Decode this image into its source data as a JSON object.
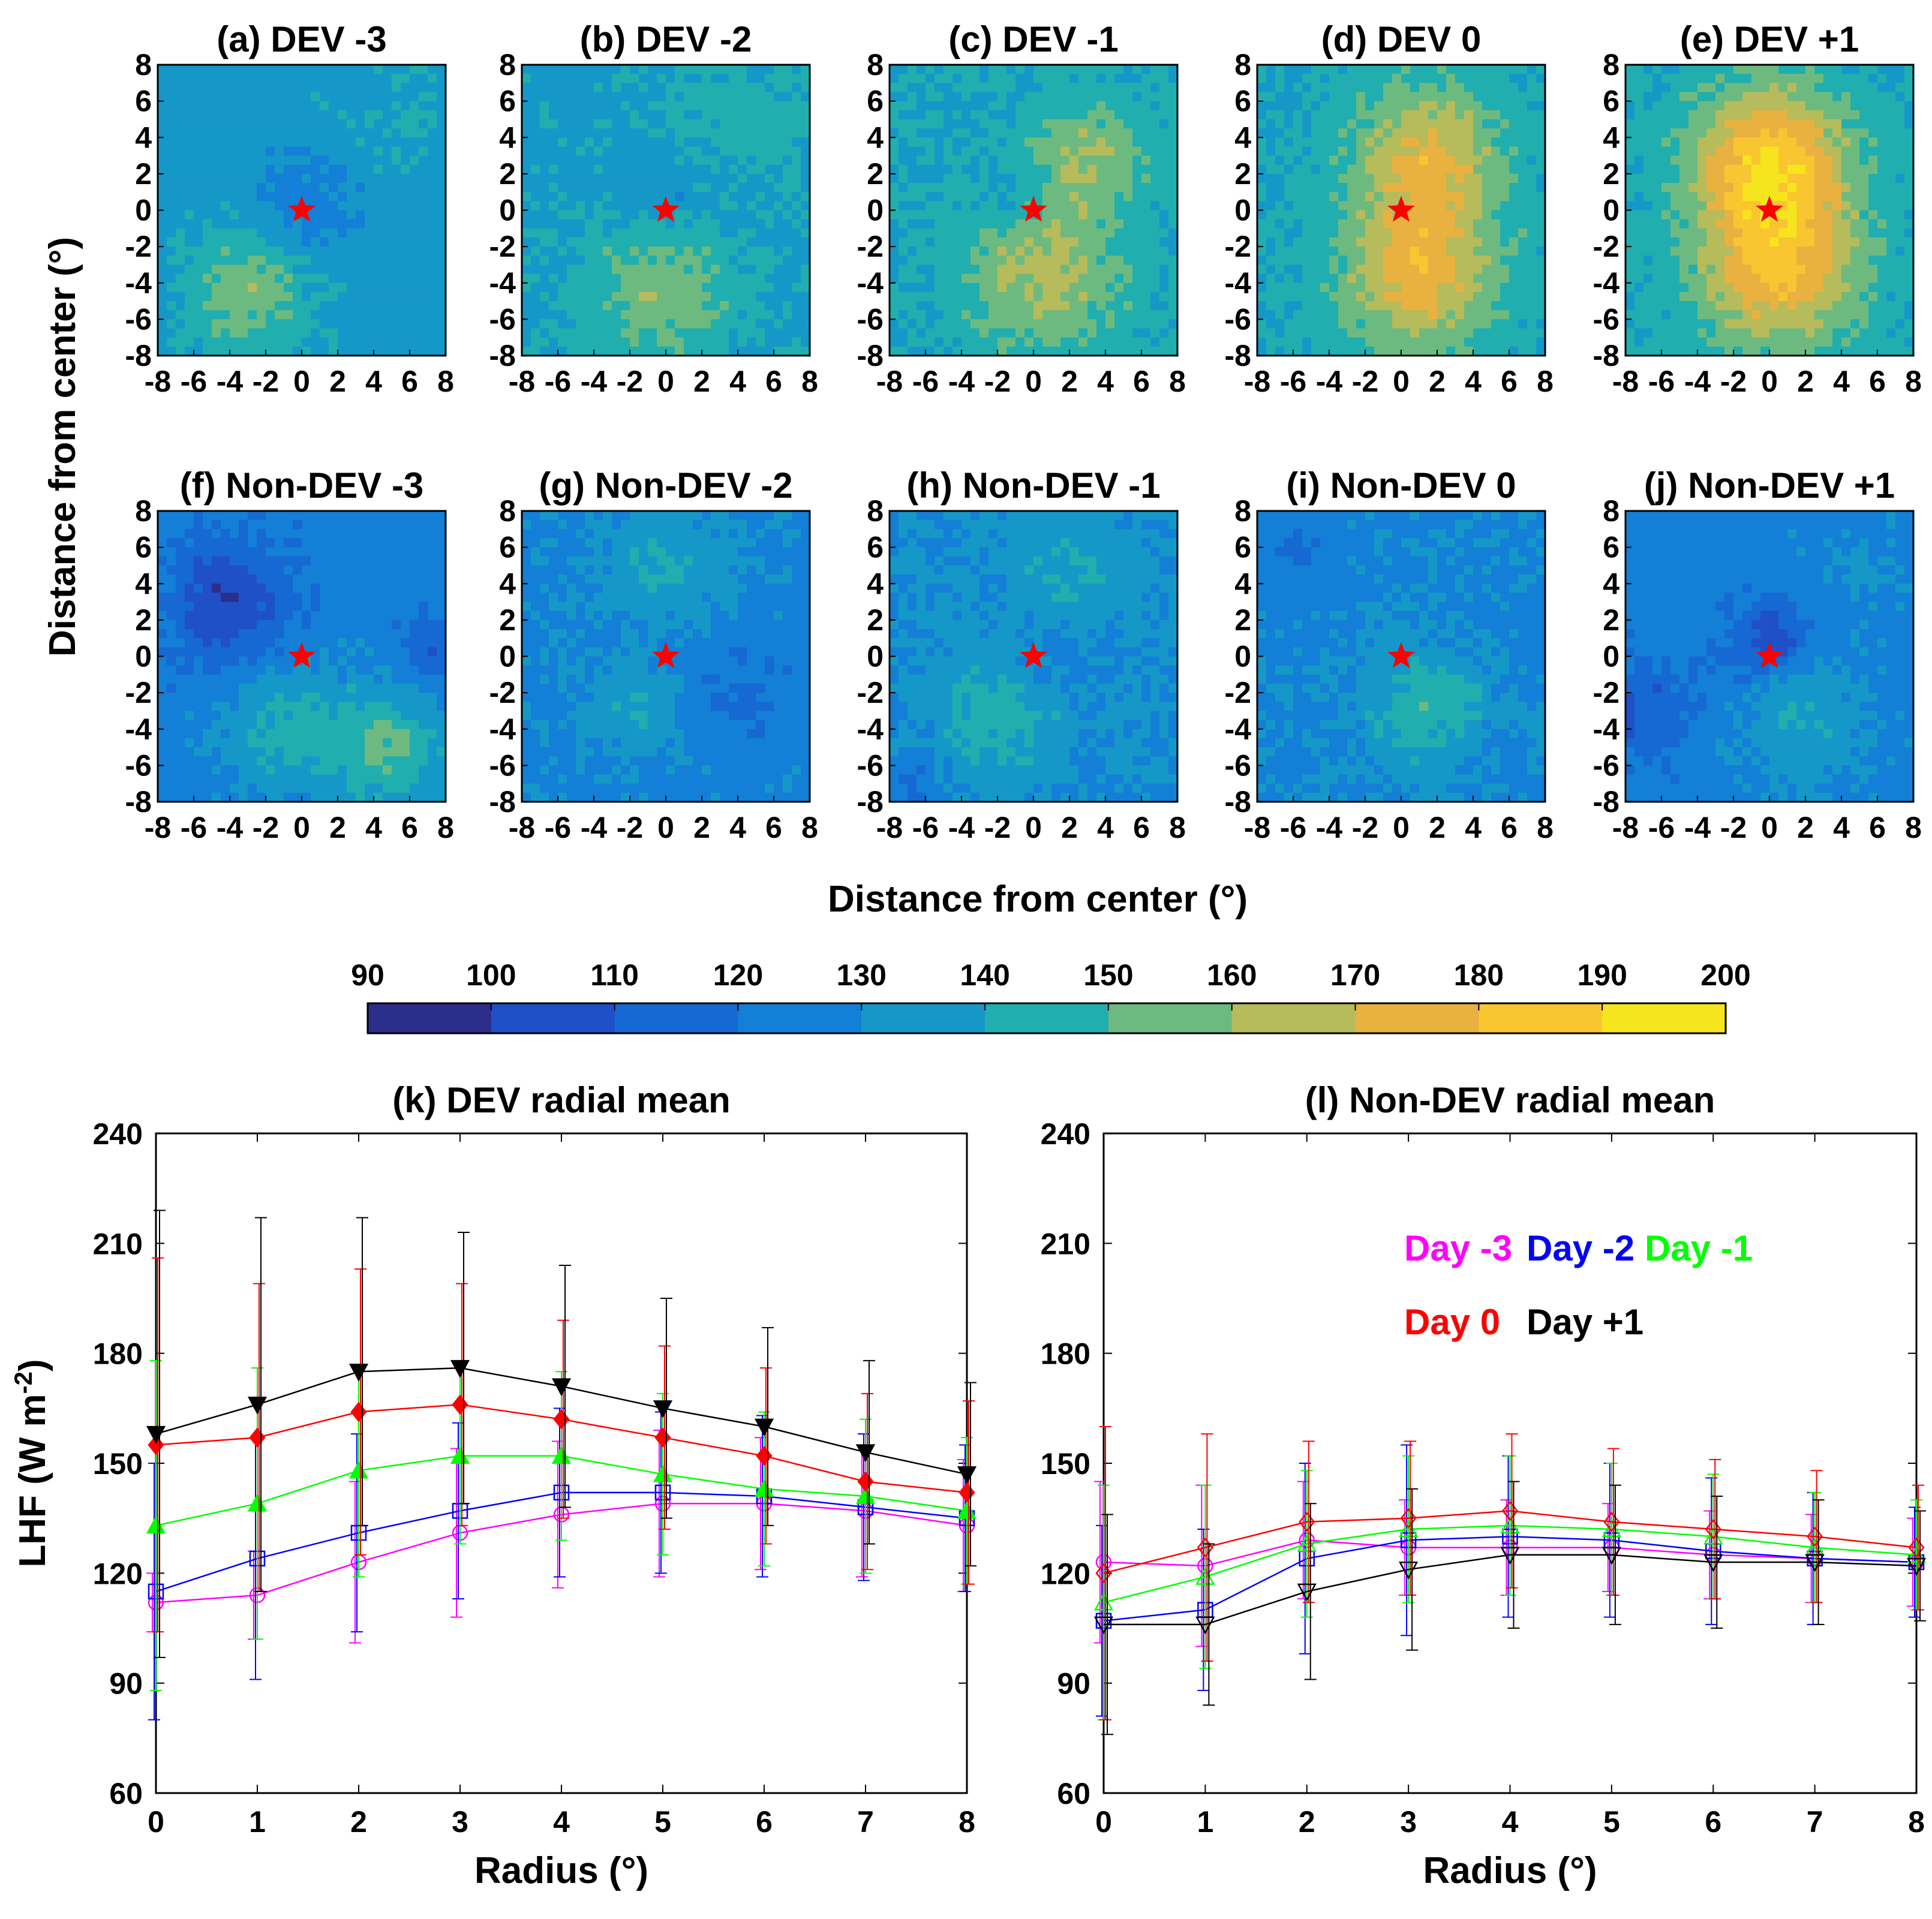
{
  "figure": {
    "shared_ylabel": "Distance from center (°)",
    "shared_xlabel": "Distance from center (°)"
  },
  "colorbar": {
    "ticks": [
      90,
      100,
      110,
      120,
      130,
      140,
      150,
      160,
      170,
      180,
      190,
      200
    ],
    "colors": [
      "#2b2e8b",
      "#1f50c8",
      "#1668d2",
      "#137fd6",
      "#1598c8",
      "#21aeaf",
      "#6dba80",
      "#b6bb5b",
      "#e8b140",
      "#f9c530",
      "#f6e51d"
    ]
  },
  "chart_data": [
    {
      "type": "heatmap",
      "title": "(a) DEV -3",
      "xlim": [
        -8,
        8
      ],
      "ylim": [
        -8,
        8
      ],
      "xticks": [
        "-8",
        "-6",
        "-4",
        "-2",
        "0",
        "2",
        "4",
        "6",
        "8"
      ],
      "yticks": [
        "8",
        "6",
        "4",
        "2",
        "0",
        "-2",
        "-4",
        "-6",
        "-8"
      ],
      "center_marker": [
        0,
        0
      ],
      "base": 135,
      "blobs": [
        {
          "x": -3,
          "y": -4.5,
          "amp": 22,
          "s": 2.5
        },
        {
          "x": 0,
          "y": 0,
          "amp": -12,
          "s": 2
        },
        {
          "x": 5,
          "y": 6,
          "amp": 5,
          "s": 2.5
        }
      ]
    },
    {
      "type": "heatmap",
      "title": "(b) DEV -2",
      "xlim": [
        -8,
        8
      ],
      "ylim": [
        -8,
        8
      ],
      "xticks": [
        "-8",
        "-6",
        "-4",
        "-2",
        "0",
        "2",
        "4",
        "6",
        "8"
      ],
      "yticks": [
        "8",
        "6",
        "4",
        "2",
        "0",
        "-2",
        "-4",
        "-6",
        "-8"
      ],
      "center_marker": [
        0,
        0
      ],
      "base": 137,
      "blobs": [
        {
          "x": -0.5,
          "y": -4.5,
          "amp": 20,
          "s": 3
        },
        {
          "x": 0,
          "y": 0.5,
          "amp": -10,
          "s": 1.8
        },
        {
          "x": 4,
          "y": 5,
          "amp": 8,
          "s": 3
        }
      ]
    },
    {
      "type": "heatmap",
      "title": "(c) DEV -1",
      "xlim": [
        -8,
        8
      ],
      "ylim": [
        -8,
        8
      ],
      "xticks": [
        "-8",
        "-6",
        "-4",
        "-2",
        "0",
        "2",
        "4",
        "6",
        "8"
      ],
      "yticks": [
        "8",
        "6",
        "4",
        "2",
        "0",
        "-2",
        "-4",
        "-6",
        "-8"
      ],
      "center_marker": [
        0,
        0
      ],
      "base": 140,
      "blobs": [
        {
          "x": 0.5,
          "y": -3.5,
          "amp": 25,
          "s": 3
        },
        {
          "x": 3,
          "y": 3,
          "amp": 20,
          "s": 2.2
        },
        {
          "x": -1,
          "y": 0.5,
          "amp": -8,
          "s": 1.5
        }
      ]
    },
    {
      "type": "heatmap",
      "title": "(d) DEV 0",
      "xlim": [
        -8,
        8
      ],
      "ylim": [
        -8,
        8
      ],
      "xticks": [
        "-8",
        "-6",
        "-4",
        "-2",
        "0",
        "2",
        "4",
        "6",
        "8"
      ],
      "yticks": [
        "8",
        "6",
        "4",
        "2",
        "0",
        "-2",
        "-4",
        "-6",
        "-8"
      ],
      "center_marker": [
        0,
        0
      ],
      "base": 140,
      "blobs": [
        {
          "x": 1,
          "y": -3.5,
          "amp": 35,
          "s": 3
        },
        {
          "x": 1.5,
          "y": 3,
          "amp": 32,
          "s": 2.8
        }
      ]
    },
    {
      "type": "heatmap",
      "title": "(e) DEV +1",
      "xlim": [
        -8,
        8
      ],
      "ylim": [
        -8,
        8
      ],
      "xticks": [
        "-8",
        "-6",
        "-4",
        "-2",
        "0",
        "2",
        "4",
        "6",
        "8"
      ],
      "yticks": [
        "8",
        "6",
        "4",
        "2",
        "0",
        "-2",
        "-4",
        "-6",
        "-8"
      ],
      "center_marker": [
        0,
        0
      ],
      "base": 140,
      "blobs": [
        {
          "x": 0,
          "y": 2.5,
          "amp": 48,
          "s": 3
        },
        {
          "x": 0.5,
          "y": -3.5,
          "amp": 38,
          "s": 3
        }
      ]
    },
    {
      "type": "heatmap",
      "title": "(f) Non-DEV -3",
      "xlim": [
        -8,
        8
      ],
      "ylim": [
        -8,
        8
      ],
      "xticks": [
        "-8",
        "-6",
        "-4",
        "-2",
        "0",
        "2",
        "4",
        "6",
        "8"
      ],
      "yticks": [
        "8",
        "6",
        "4",
        "2",
        "0",
        "-2",
        "-4",
        "-6",
        "-8"
      ],
      "center_marker": [
        0,
        0
      ],
      "base": 125,
      "blobs": [
        {
          "x": -4,
          "y": 3,
          "amp": -25,
          "s": 2.3
        },
        {
          "x": 5,
          "y": -5,
          "amp": 25,
          "s": 2.5
        },
        {
          "x": -1,
          "y": -4,
          "amp": 18,
          "s": 2.5
        },
        {
          "x": 7.5,
          "y": 0,
          "amp": -15,
          "s": 1.5
        }
      ]
    },
    {
      "type": "heatmap",
      "title": "(g) Non-DEV -2",
      "xlim": [
        -8,
        8
      ],
      "ylim": [
        -8,
        8
      ],
      "xticks": [
        "-8",
        "-6",
        "-4",
        "-2",
        "0",
        "2",
        "4",
        "6",
        "8"
      ],
      "yticks": [
        "8",
        "6",
        "4",
        "2",
        "0",
        "-2",
        "-4",
        "-6",
        "-8"
      ],
      "center_marker": [
        0,
        0
      ],
      "base": 127,
      "blobs": [
        {
          "x": 0,
          "y": 5,
          "amp": 13,
          "s": 2.5
        },
        {
          "x": -1.5,
          "y": -3,
          "amp": 12,
          "s": 2
        },
        {
          "x": 4,
          "y": -2,
          "amp": -8,
          "s": 2.5
        }
      ]
    },
    {
      "type": "heatmap",
      "title": "(h) Non-DEV -1",
      "xlim": [
        -8,
        8
      ],
      "ylim": [
        -8,
        8
      ],
      "xticks": [
        "-8",
        "-6",
        "-4",
        "-2",
        "0",
        "2",
        "4",
        "6",
        "8"
      ],
      "yticks": [
        "8",
        "6",
        "4",
        "2",
        "0",
        "-2",
        "-4",
        "-6",
        "-8"
      ],
      "center_marker": [
        0,
        0
      ],
      "base": 130,
      "blobs": [
        {
          "x": -2,
          "y": -3,
          "amp": 15,
          "s": 2.5
        },
        {
          "x": 2,
          "y": 5,
          "amp": 10,
          "s": 2.5
        },
        {
          "x": 1,
          "y": 0,
          "amp": -8,
          "s": 1.5
        },
        {
          "x": -7,
          "y": -7,
          "amp": -10,
          "s": 1.5
        }
      ]
    },
    {
      "type": "heatmap",
      "title": "(i) Non-DEV 0",
      "xlim": [
        -8,
        8
      ],
      "ylim": [
        -8,
        8
      ],
      "xticks": [
        "-8",
        "-6",
        "-4",
        "-2",
        "0",
        "2",
        "4",
        "6",
        "8"
      ],
      "yticks": [
        "8",
        "6",
        "4",
        "2",
        "0",
        "-2",
        "-4",
        "-6",
        "-8"
      ],
      "center_marker": [
        0,
        0
      ],
      "base": 128,
      "blobs": [
        {
          "x": 1,
          "y": -3,
          "amp": 18,
          "s": 2.3
        },
        {
          "x": 3,
          "y": -2,
          "amp": 8,
          "s": 1
        },
        {
          "x": -6,
          "y": 6,
          "amp": -6,
          "s": 2
        }
      ]
    },
    {
      "type": "heatmap",
      "title": "(j) Non-DEV +1",
      "xlim": [
        -8,
        8
      ],
      "ylim": [
        -8,
        8
      ],
      "xticks": [
        "-8",
        "-6",
        "-4",
        "-2",
        "0",
        "2",
        "4",
        "6",
        "8"
      ],
      "yticks": [
        "8",
        "6",
        "4",
        "2",
        "0",
        "-2",
        "-4",
        "-6",
        "-8"
      ],
      "center_marker": [
        0,
        0
      ],
      "base": 125,
      "blobs": [
        {
          "x": 0,
          "y": 1,
          "amp": -22,
          "s": 1.5
        },
        {
          "x": 2,
          "y": -3.5,
          "amp": 15,
          "s": 2.5
        },
        {
          "x": -7,
          "y": -3,
          "amp": -15,
          "s": 2
        },
        {
          "x": 5,
          "y": 5,
          "amp": 6,
          "s": 2
        }
      ]
    },
    {
      "type": "line",
      "title": "(k) DEV radial mean",
      "xlabel": "Radius (°)",
      "ylabel": "LHF (W m-2)",
      "ylabel_main": "LHF (W m",
      "ylabel_sup": "-2",
      "ylabel_end": ")",
      "xlim": [
        0,
        8
      ],
      "ylim": [
        60,
        240
      ],
      "xticks": [
        0,
        1,
        2,
        3,
        4,
        5,
        6,
        7,
        8
      ],
      "yticks": [
        60,
        90,
        120,
        150,
        180,
        210,
        240
      ],
      "x": [
        0,
        1,
        2,
        3,
        4,
        5,
        6,
        7,
        8
      ],
      "series": [
        {
          "name": "Day -3",
          "color": "#ff00ff",
          "marker": "circle",
          "filled": false,
          "values": [
            112,
            114,
            123,
            131,
            136,
            139,
            139,
            137,
            133
          ],
          "err": [
            8,
            12,
            22,
            23,
            20,
            20,
            18,
            18,
            18
          ]
        },
        {
          "name": "Day -2",
          "color": "#0000ff",
          "marker": "square",
          "filled": false,
          "values": [
            115,
            124,
            131,
            137,
            142,
            142,
            141,
            138,
            135
          ],
          "err": [
            35,
            33,
            27,
            24,
            23,
            22,
            22,
            20,
            20
          ]
        },
        {
          "name": "Day -1",
          "color": "#00ff00",
          "marker": "triangle-up",
          "filled": true,
          "values": [
            133,
            139,
            148,
            152,
            152,
            147,
            143,
            141,
            137
          ],
          "err": [
            45,
            37,
            29,
            24,
            23,
            22,
            21,
            21,
            20
          ]
        },
        {
          "name": "Day 0",
          "color": "#ff0000",
          "marker": "diamond",
          "filled": true,
          "values": [
            155,
            157,
            164,
            166,
            162,
            157,
            152,
            145,
            142
          ],
          "err": [
            51,
            42,
            39,
            33,
            27,
            25,
            24,
            24,
            25
          ]
        },
        {
          "name": "Day +1",
          "color": "#000000",
          "marker": "triangle-down",
          "filled": true,
          "values": [
            158,
            166,
            175,
            176,
            171,
            165,
            160,
            153,
            147
          ],
          "err": [
            61,
            51,
            42,
            37,
            33,
            30,
            27,
            25,
            25
          ]
        }
      ]
    },
    {
      "type": "line",
      "title": "(l) Non-DEV radial mean",
      "xlabel": "Radius (°)",
      "xlim": [
        0,
        8
      ],
      "ylim": [
        60,
        240
      ],
      "xticks": [
        0,
        1,
        2,
        3,
        4,
        5,
        6,
        7,
        8
      ],
      "yticks": [
        60,
        90,
        120,
        150,
        180,
        210,
        240
      ],
      "x": [
        0,
        1,
        2,
        3,
        4,
        5,
        6,
        7,
        8
      ],
      "legend": [
        {
          "label": "Day -3",
          "color": "#ff00ff"
        },
        {
          "label": "Day -2",
          "color": "#0000ff"
        },
        {
          "label": "Day -1",
          "color": "#00ff00"
        },
        {
          "label": "Day 0",
          "color": "#ff0000"
        },
        {
          "label": "Day +1",
          "color": "#000000"
        }
      ],
      "series": [
        {
          "name": "Day -3",
          "color": "#ff00ff",
          "marker": "circle",
          "filled": false,
          "values": [
            123,
            122,
            129,
            127,
            127,
            127,
            125,
            124,
            123
          ],
          "err": [
            22,
            22,
            16,
            13,
            13,
            12,
            12,
            12,
            12
          ]
        },
        {
          "name": "Day -2",
          "color": "#0000ff",
          "marker": "square",
          "filled": false,
          "values": [
            107,
            110,
            124,
            129,
            130,
            129,
            126,
            124,
            123
          ],
          "err": [
            26,
            22,
            26,
            26,
            22,
            21,
            20,
            18,
            15
          ]
        },
        {
          "name": "Day -1",
          "color": "#00ff00",
          "marker": "triangle-up",
          "filled": false,
          "values": [
            112,
            119,
            128,
            132,
            133,
            132,
            130,
            127,
            125
          ],
          "err": [
            32,
            25,
            20,
            20,
            19,
            18,
            17,
            15,
            15
          ]
        },
        {
          "name": "Day 0",
          "color": "#ff0000",
          "marker": "diamond",
          "filled": false,
          "values": [
            120,
            127,
            134,
            135,
            137,
            134,
            132,
            130,
            127
          ],
          "err": [
            40,
            31,
            22,
            21,
            21,
            20,
            19,
            18,
            17
          ]
        },
        {
          "name": "Day +1",
          "color": "#000000",
          "marker": "triangle-down",
          "filled": false,
          "values": [
            106,
            106,
            115,
            121,
            125,
            125,
            123,
            123,
            122
          ],
          "err": [
            30,
            22,
            24,
            22,
            20,
            19,
            18,
            17,
            15
          ]
        }
      ]
    }
  ]
}
